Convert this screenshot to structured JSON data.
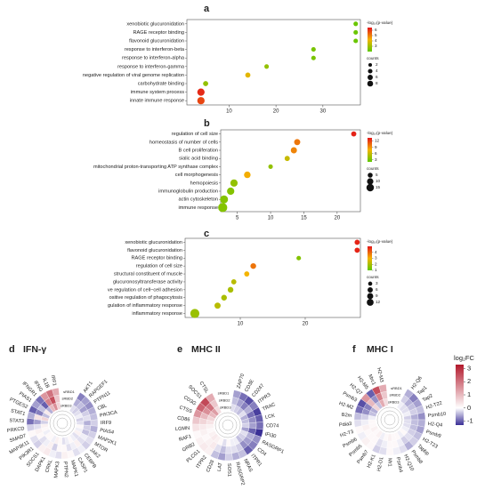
{
  "chart_data": [
    {
      "type": "dot",
      "panel": "a",
      "categories": [
        "xenobiotic glucuronidation",
        "RAGE receptor binding",
        "flavonoid glucuronidation",
        "response to interferon-beta",
        "response to interferon-alpha",
        "response to interferon-gamma",
        "negative regulation of viral genome replication",
        "carbohydrate binding",
        "immune system process",
        "innate immune response"
      ],
      "values": [
        37,
        37,
        37,
        28,
        28,
        18,
        14,
        5,
        4,
        4
      ],
      "sizes": [
        2,
        2,
        2,
        2,
        2,
        2,
        3,
        3,
        8,
        8
      ],
      "color_values": [
        2.2,
        2.2,
        2.2,
        2.4,
        2.4,
        2.8,
        4.0,
        2.8,
        6.2,
        5.8
      ],
      "xlim": [
        1,
        38
      ],
      "xticks": [
        10,
        20,
        30
      ],
      "color_title": "-log₁₀(p-value)",
      "color_lim": [
        2,
        6.5
      ],
      "color_ticks": [
        3,
        4,
        5,
        6
      ],
      "colors": {
        "low": "#5dc800",
        "mid": "#f4b400",
        "high": "#e3151a"
      },
      "size_title": "counts",
      "size_ticks": [
        2,
        4,
        6,
        8
      ]
    },
    {
      "type": "dot",
      "panel": "b",
      "categories": [
        "regulation of cell size",
        "homeostasis of number of cells",
        "B cell proliferation",
        "sialic acid binding",
        "mitochondrial proton-transporting ATP synthase complex",
        "cell morphogenesis",
        "hemopoiesis",
        "immunoglobulin production",
        "actin cytoskeleton",
        "immune response"
      ],
      "values": [
        22.5,
        14,
        13.5,
        12.5,
        10,
        6.5,
        4.5,
        4,
        3,
        2.8
      ],
      "sizes": [
        3,
        5,
        5,
        3,
        2,
        6,
        8,
        8,
        10,
        14
      ],
      "color_values": [
        13,
        10,
        9.5,
        6,
        4,
        8,
        4,
        3.5,
        3.5,
        3.5
      ],
      "xlim": [
        2.5,
        23.5
      ],
      "xticks": [
        5,
        10,
        15,
        20
      ],
      "color_title": "-log₁₀(p-value)",
      "color_lim": [
        2,
        13.5
      ],
      "color_ticks": [
        3,
        6,
        9,
        12
      ],
      "colors": {
        "low": "#5dc800",
        "mid": "#f4b400",
        "high": "#e3151a"
      },
      "size_title": "counts",
      "size_ticks": [
        5,
        10,
        15
      ]
    },
    {
      "type": "dot",
      "panel": "c",
      "categories": [
        "xenobiotic glucuronidation",
        "flavonoid glucuronidation",
        "RAGE receptor binding",
        "regulation of cell size",
        "structural constituent of muscle",
        "glucuronosyltransferase activity",
        "ve regulation of cell−cell adhesion",
        "ositive regulation of phagocytosis",
        "gulation of inflammatory response",
        "inflammatory response"
      ],
      "values": [
        28,
        28,
        19,
        12,
        11,
        9,
        8.5,
        7.5,
        6.5,
        3
      ],
      "sizes": [
        3,
        3,
        2,
        4,
        3,
        3,
        4,
        4,
        5,
        14
      ],
      "color_values": [
        4.8,
        4.8,
        1.5,
        3.8,
        3,
        2.2,
        2,
        2,
        2.2,
        1.8
      ],
      "xlim": [
        1.5,
        28.5
      ],
      "xticks": [
        10,
        20
      ],
      "color_title": "-log₁₀(p-value)",
      "color_lim": [
        1,
        5
      ],
      "color_ticks": [
        1,
        2,
        3,
        4
      ],
      "colors": {
        "low": "#5dc800",
        "mid": "#f4b400",
        "high": "#e3151a"
      },
      "size_title": "counts",
      "size_ticks": [
        3,
        6,
        9,
        12
      ]
    },
    {
      "type": "circular_heatmap",
      "panel": "d",
      "title": "IFN-γ",
      "categories": [
        "AKT1",
        "RAPGEF1",
        "PTPN11",
        "CBL",
        "PIK3CA",
        "IRF9",
        "PIAS4",
        "MAP2K1",
        "MTOR",
        "JAK2",
        "CEBPB",
        "CASP1",
        "MAPK1",
        "PTPN2",
        "MAPK3",
        "CRKL",
        "DAPK1",
        "SOCS1",
        "PIK3R1",
        "MAP3K11",
        "SMAD7",
        "PRKCD",
        "STAT3",
        "STAT1",
        "PTGES2",
        "PIAS1",
        "IFNGR1",
        "IFNG",
        "IL1B",
        "IRF1"
      ],
      "series": [
        {
          "name": "sRBD1",
          "values": [
            -0.8,
            -0.6,
            -0.7,
            -0.5,
            -0.4,
            -0.3,
            -0.5,
            -0.3,
            -0.2,
            -0.3,
            -0.1,
            -0.2,
            0.1,
            0.2,
            -0.2,
            -0.1,
            0.3,
            0.2,
            -0.3,
            -0.2,
            0.1,
            -0.3,
            -0.9,
            -0.5,
            -1.0,
            -0.6,
            -0.9,
            1.5,
            2.0,
            1.2
          ]
        },
        {
          "name": "sRBD2",
          "values": [
            -0.5,
            -0.4,
            -0.6,
            -0.3,
            -0.2,
            -0.5,
            -0.3,
            -0.4,
            -0.1,
            -0.2,
            0.2,
            -0.1,
            -0.2,
            0.1,
            0.1,
            -0.3,
            0.2,
            -0.1,
            -0.2,
            0.1,
            0.2,
            -0.2,
            -0.6,
            0.4,
            -0.8,
            -0.4,
            -1.0,
            1.8,
            2.5,
            0.8
          ]
        },
        {
          "name": "sRBD3",
          "values": [
            -0.2,
            -0.3,
            -0.2,
            -0.1,
            -0.3,
            -0.2,
            0.1,
            -0.1,
            0.2,
            -0.2,
            -0.1,
            0.1,
            -0.1,
            -0.2,
            0.1,
            0.2,
            -0.1,
            0.1,
            0.1,
            -0.1,
            0.1,
            0.2,
            -0.3,
            0.6,
            -0.4,
            0.3,
            -0.5,
            1.0,
            1.6,
            0.6
          ]
        }
      ]
    },
    {
      "type": "circular_heatmap",
      "panel": "e",
      "title": "MHC II",
      "categories": [
        "ZAP70",
        "CD3E",
        "CD247",
        "ITPR3",
        "TRAC",
        "LCK",
        "CD74",
        "IFI30",
        "RASGRP1",
        "CD4",
        "ITPR1",
        "NRAS",
        "RASGRP2",
        "SOS1",
        "LAT",
        "CD28",
        "ITPR2",
        "PLCG1",
        "GRB2",
        "RAF1",
        "LGMN",
        "CD86",
        "CTSS",
        "CD3G",
        "SOCS1",
        "CTSL"
      ],
      "series": [
        {
          "name": "sRBD1",
          "values": [
            -0.6,
            -0.9,
            -1.1,
            -0.8,
            -1.2,
            -1.0,
            -0.9,
            -1.3,
            -0.7,
            -0.8,
            -1.0,
            -0.4,
            -0.5,
            -0.3,
            -0.6,
            -0.4,
            0.2,
            0.3,
            0.2,
            0.1,
            0.4,
            0.8,
            1.5,
            2.2,
            2.6,
            1.2
          ]
        },
        {
          "name": "sRBD2",
          "values": [
            -0.4,
            -0.6,
            -0.8,
            -0.5,
            -0.9,
            -0.7,
            -0.6,
            -1.0,
            -0.5,
            -0.6,
            -0.7,
            -0.3,
            -0.2,
            -0.2,
            -0.4,
            -0.2,
            0.3,
            0.2,
            0.1,
            0.2,
            0.3,
            0.6,
            1.0,
            1.6,
            2.0,
            0.8
          ]
        },
        {
          "name": "sRBD3",
          "values": [
            -0.2,
            -0.3,
            -0.4,
            -0.2,
            -0.5,
            -0.4,
            -0.3,
            -0.6,
            -0.2,
            -0.3,
            -0.4,
            -0.1,
            -0.1,
            0.1,
            -0.2,
            0.1,
            0.2,
            0.3,
            0.2,
            0.1,
            0.2,
            0.4,
            0.6,
            1.0,
            1.4,
            0.5
          ]
        }
      ]
    },
    {
      "type": "circular_heatmap",
      "panel": "f",
      "title": "MHC I",
      "categories": [
        "H2-Q6",
        "Tap1",
        "Tap2",
        "H2-T22",
        "Psmb10",
        "H2-Q4",
        "Psmb9",
        "H2-T23",
        "Tapbp",
        "Psmb8",
        "H2-Q10",
        "Psmb4",
        "Mr1",
        "H2-D1",
        "H2-K1",
        "Psmb7",
        "Psmb5",
        "Psmb6",
        "H2-T3",
        "Pdia3",
        "B2m",
        "H2-M2",
        "Psmb3",
        "H2-Q7",
        "H2-M5",
        "Mrc1",
        "H2-M3"
      ],
      "series": [
        {
          "name": "sRBD1",
          "values": [
            -0.5,
            -0.8,
            -0.6,
            -0.4,
            -0.7,
            -0.5,
            -0.6,
            -0.4,
            -0.3,
            -0.5,
            -0.2,
            -0.1,
            0.1,
            -0.2,
            -0.3,
            0.1,
            0.2,
            -0.1,
            0.1,
            -0.2,
            -0.4,
            -0.9,
            -1.1,
            1.5,
            -1.0,
            2.5,
            1.2
          ]
        },
        {
          "name": "sRBD2",
          "values": [
            -0.3,
            -0.5,
            -0.4,
            -0.3,
            -0.5,
            -0.4,
            -0.4,
            -0.3,
            -0.2,
            -0.3,
            -0.1,
            0.1,
            0.1,
            -0.1,
            -0.2,
            0.1,
            0.1,
            0.1,
            0.2,
            -0.1,
            -0.3,
            -0.7,
            -0.8,
            1.0,
            -0.7,
            1.8,
            0.8
          ]
        },
        {
          "name": "sRBD3",
          "values": [
            -0.1,
            -0.2,
            -0.2,
            -0.1,
            -0.3,
            -0.2,
            -0.2,
            -0.1,
            0.1,
            -0.1,
            0.1,
            0.1,
            0.2,
            0.1,
            -0.1,
            0.2,
            0.1,
            0.2,
            0.1,
            0.1,
            -0.1,
            -0.4,
            -0.5,
            0.6,
            -0.4,
            1.2,
            0.5
          ]
        }
      ],
      "colorbar": {
        "title": "log₂FC",
        "lim": [
          -1.3,
          3.3
        ],
        "ticks": [
          3,
          2,
          1,
          0,
          -1
        ],
        "colors": {
          "low": "#3a2f96",
          "mid": "#ffffff",
          "high": "#b2182b"
        }
      }
    }
  ]
}
